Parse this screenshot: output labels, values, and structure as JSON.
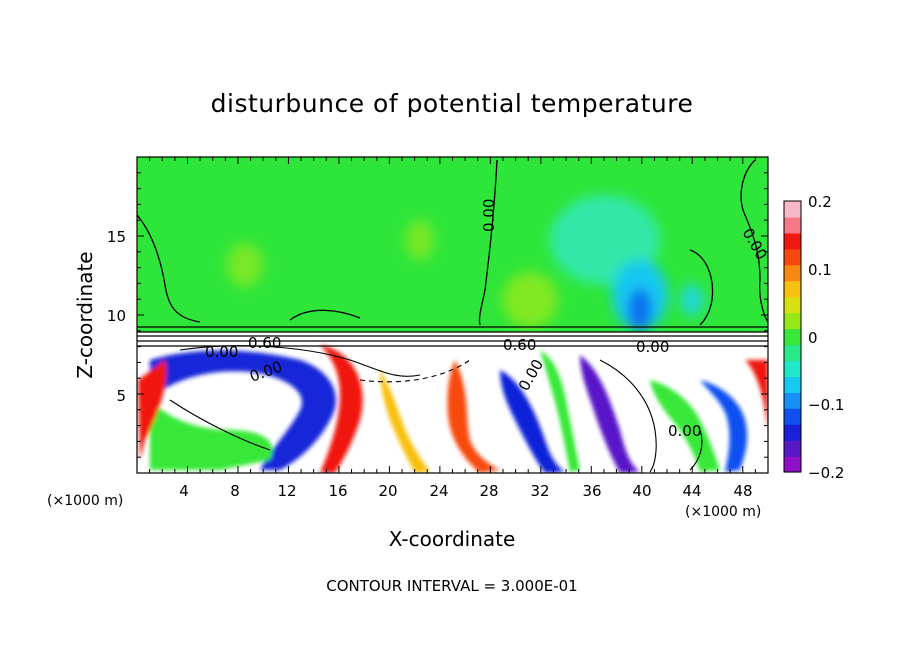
{
  "chart_data": {
    "type": "heatmap",
    "title": "disturbunce of potential temperature",
    "xlabel": "X-coordinate",
    "ylabel": "Z-coordinate",
    "x_unit": "(×1000 m)",
    "z_unit": "(×1000 m)",
    "xlim": [
      0,
      50
    ],
    "ylim": [
      0,
      20
    ],
    "x_ticks": [
      "4",
      "8",
      "12",
      "16",
      "20",
      "24",
      "28",
      "32",
      "36",
      "40",
      "44",
      "48"
    ],
    "y_ticks": [
      "5",
      "10",
      "15"
    ],
    "colorbar": {
      "range": [
        -0.2,
        0.2
      ],
      "tick_labels": [
        "0.2",
        "0.1",
        "0",
        "−0.1",
        "−0.2"
      ],
      "colors": [
        "#8e10c8",
        "#5818c8",
        "#1820d8",
        "#1050f0",
        "#1490f8",
        "#18c8f0",
        "#20e8c8",
        "#28e888",
        "#38e838",
        "#98e818",
        "#d8e010",
        "#f8c010",
        "#f88810",
        "#f84810",
        "#f01810",
        "#f87888",
        "#f8b8c8"
      ]
    },
    "contour_labels": [
      "0.00",
      "0.00",
      "0.00",
      "0.60",
      "0.00",
      "0.60",
      "0.00",
      "0.00",
      "0.00"
    ],
    "annotation": "CONTOUR INTERVAL = 3.000E-01"
  }
}
